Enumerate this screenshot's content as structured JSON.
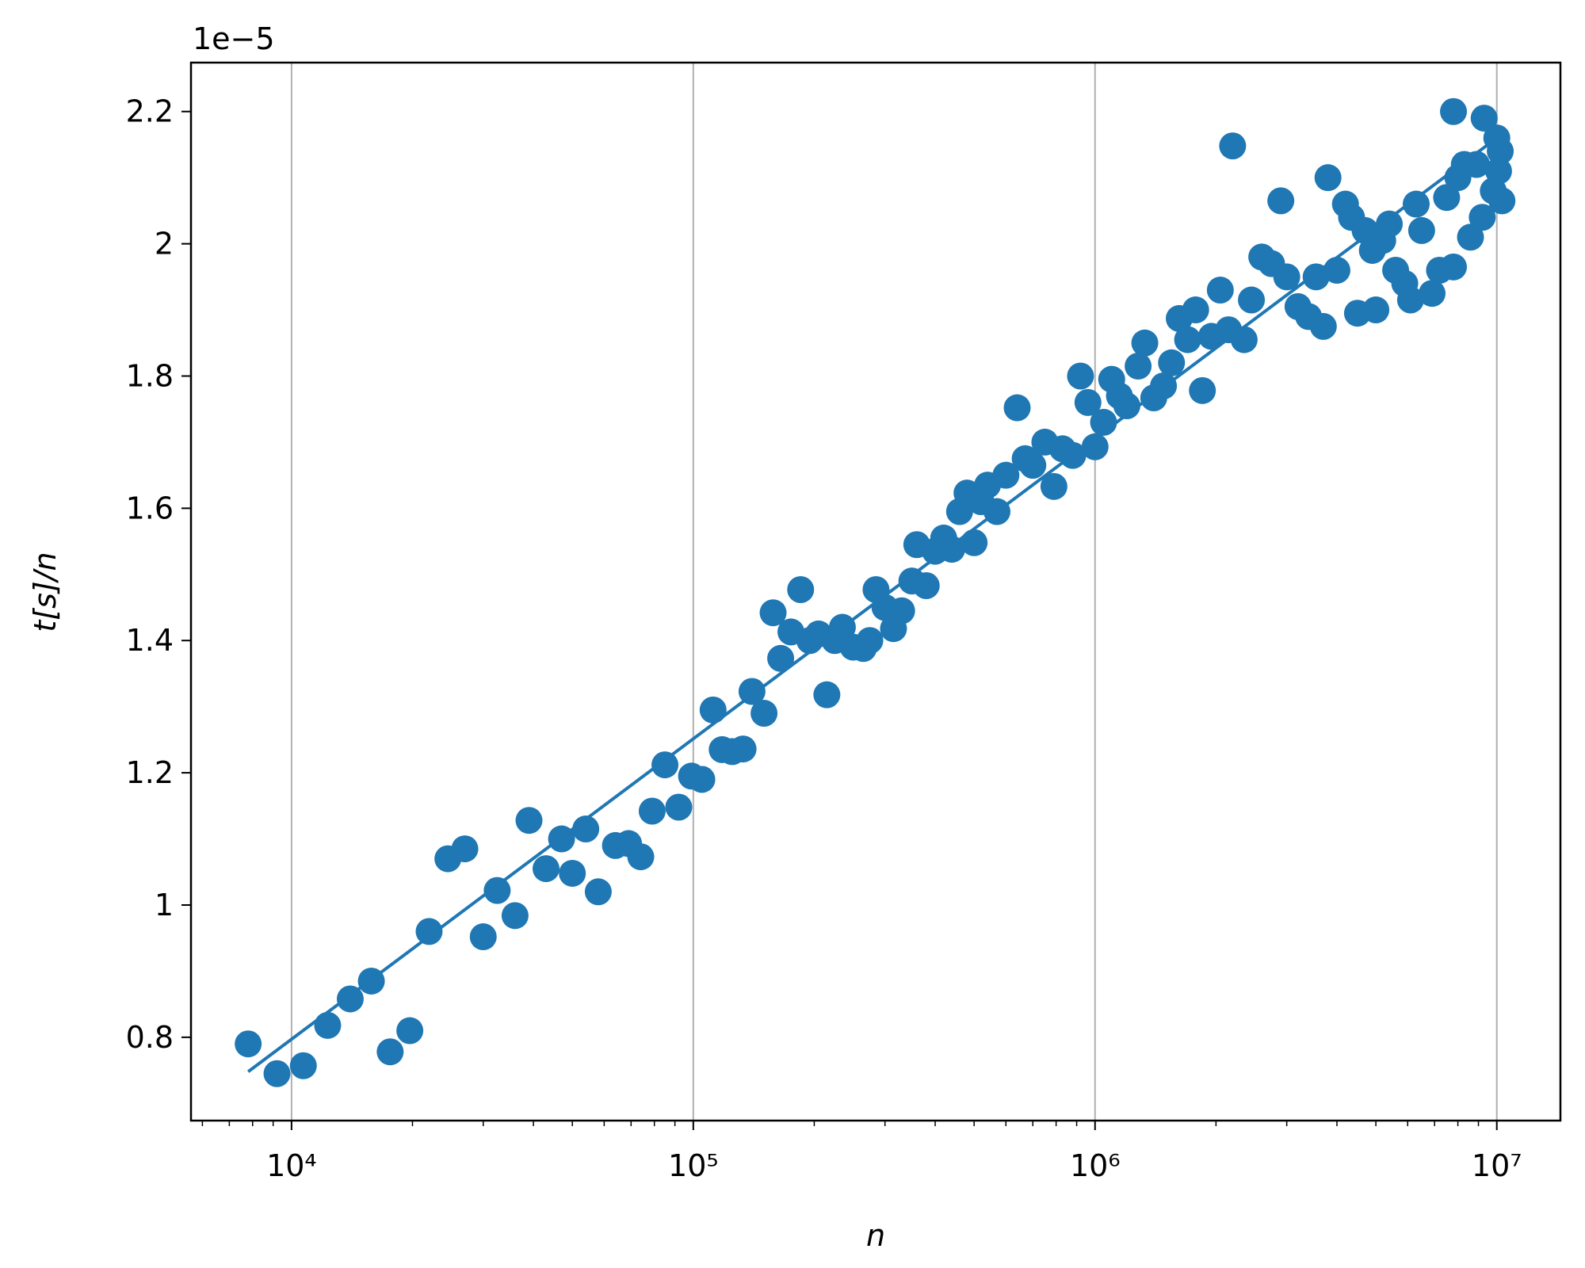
{
  "chart_data": {
    "type": "scatter",
    "offset_text": "1e−5",
    "xlabel": "n",
    "ylabel": "t[s]/n",
    "xscale": "log",
    "grid": "x",
    "xlim": [
      5620,
      14400000
    ],
    "ylim": [
      0.674,
      2.274
    ],
    "xticks": [
      {
        "value": 10000,
        "label": "10⁴"
      },
      {
        "value": 100000,
        "label": "10⁵"
      },
      {
        "value": 1000000,
        "label": "10⁶"
      },
      {
        "value": 10000000,
        "label": "10⁷"
      }
    ],
    "xminorticks": [
      6000,
      7000,
      8000,
      9000,
      20000,
      30000,
      40000,
      50000,
      60000,
      70000,
      80000,
      90000,
      200000,
      300000,
      400000,
      500000,
      600000,
      700000,
      800000,
      900000,
      2000000,
      3000000,
      4000000,
      5000000,
      6000000,
      7000000,
      8000000,
      9000000
    ],
    "yticks": [
      0.8,
      1.0,
      1.2,
      1.4,
      1.6,
      1.8,
      2.0,
      2.2
    ],
    "series": [
      {
        "type": "scatter",
        "color": "#1f77b4",
        "x": [
          7800,
          9200,
          10700,
          12300,
          14000,
          15800,
          17600,
          19700,
          22000,
          24500,
          27000,
          30000,
          32500,
          36000,
          39000,
          43000,
          47000,
          50000,
          54000,
          58000,
          64000,
          69000,
          74000,
          79000,
          85000,
          92000,
          99000,
          105000,
          112000,
          118000,
          125000,
          133000,
          140000,
          150000,
          158000,
          165000,
          175000,
          185000,
          195000,
          205000,
          215000,
          225000,
          235000,
          250000,
          265000,
          275000,
          285000,
          300000,
          315000,
          330000,
          350000,
          360000,
          380000,
          400000,
          420000,
          440000,
          460000,
          480000,
          500000,
          520000,
          540000,
          570000,
          600000,
          640000,
          670000,
          700000,
          750000,
          790000,
          830000,
          880000,
          920000,
          960000,
          1000000,
          1050000,
          1100000,
          1150000,
          1200000,
          1280000,
          1330000,
          1400000,
          1480000,
          1550000,
          1620000,
          1700000,
          1780000,
          1850000,
          1950000,
          2050000,
          2150000,
          2200000,
          2350000,
          2450000,
          2600000,
          2750000,
          2900000,
          3000000,
          3200000,
          3400000,
          3550000,
          3700000,
          3800000,
          4000000,
          4200000,
          4350000,
          4500000,
          4700000,
          4900000,
          5000000,
          5200000,
          5400000,
          5600000,
          5900000,
          6100000,
          6300000,
          6500000,
          6900000,
          7200000,
          7500000,
          7800000,
          8000000,
          8300000,
          8600000,
          8900000,
          9200000,
          7800000,
          9800000,
          10000000,
          10200000,
          10300000,
          10100000,
          9300000
        ],
        "values": [
          0.79,
          0.745,
          0.757,
          0.818,
          0.858,
          0.885,
          0.778,
          0.81,
          0.96,
          1.07,
          1.085,
          0.952,
          1.022,
          0.984,
          1.128,
          1.055,
          1.1,
          1.048,
          1.115,
          1.02,
          1.09,
          1.093,
          1.073,
          1.142,
          1.212,
          1.148,
          1.195,
          1.19,
          1.295,
          1.235,
          1.232,
          1.236,
          1.323,
          1.29,
          1.442,
          1.373,
          1.413,
          1.477,
          1.4,
          1.41,
          1.318,
          1.4,
          1.42,
          1.39,
          1.388,
          1.4,
          1.477,
          1.45,
          1.418,
          1.445,
          1.49,
          1.545,
          1.483,
          1.535,
          1.555,
          1.538,
          1.595,
          1.623,
          1.548,
          1.61,
          1.635,
          1.595,
          1.65,
          1.752,
          1.675,
          1.665,
          1.7,
          1.633,
          1.69,
          1.68,
          1.8,
          1.76,
          1.693,
          1.73,
          1.795,
          1.77,
          1.755,
          1.815,
          1.85,
          1.767,
          1.785,
          1.82,
          1.887,
          1.855,
          1.9,
          1.778,
          1.86,
          1.93,
          1.87,
          2.148,
          1.855,
          1.915,
          1.98,
          1.97,
          2.065,
          1.95,
          1.905,
          1.89,
          1.95,
          1.875,
          2.1,
          1.96,
          2.06,
          2.04,
          1.895,
          2.02,
          1.99,
          1.9,
          2.005,
          2.03,
          1.96,
          1.94,
          1.915,
          2.06,
          2.02,
          1.925,
          1.96,
          2.07,
          1.965,
          2.1,
          2.12,
          2.01,
          2.12,
          2.04,
          2.2,
          2.08,
          2.16,
          2.14,
          2.065,
          2.11,
          2.19
        ]
      },
      {
        "type": "line",
        "color": "#1f77b4",
        "x": [
          7800,
          10000000
        ],
        "values": [
          0.748,
          2.16
        ]
      }
    ]
  }
}
